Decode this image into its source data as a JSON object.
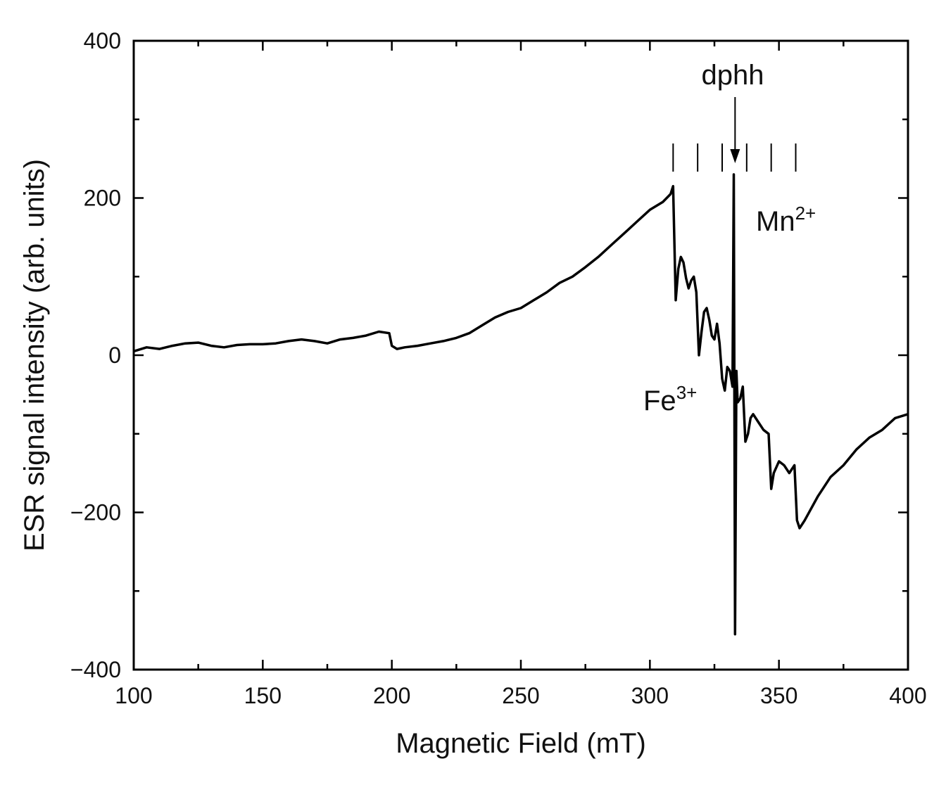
{
  "chart_data": {
    "type": "line",
    "title": "",
    "xlabel": "Magnetic Field (mT)",
    "ylabel": "ESR signal intensity (arb. units)",
    "xlim": [
      100,
      400
    ],
    "ylim": [
      -400,
      400
    ],
    "x_ticks": [
      100,
      150,
      200,
      250,
      300,
      350,
      400
    ],
    "y_ticks": [
      -400,
      -200,
      0,
      200,
      400
    ],
    "x_tick_labels": [
      "100",
      "150",
      "200",
      "250",
      "300",
      "350",
      "400"
    ],
    "y_tick_labels": [
      "−400",
      "−200",
      "0",
      "200",
      "400"
    ],
    "grid": false,
    "series": [
      {
        "name": "ESR spectrum",
        "color": "#000000",
        "x": [
          100,
          105,
          110,
          115,
          120,
          125,
          130,
          135,
          140,
          145,
          150,
          155,
          160,
          165,
          170,
          175,
          180,
          185,
          190,
          195,
          199,
          200,
          202,
          205,
          210,
          215,
          220,
          225,
          230,
          235,
          240,
          245,
          250,
          255,
          260,
          265,
          270,
          275,
          280,
          285,
          290,
          295,
          300,
          305,
          308,
          309,
          310,
          311,
          312,
          313,
          314,
          315,
          316,
          317,
          318,
          319,
          320,
          321,
          322,
          323,
          324,
          325,
          326,
          327,
          328,
          329,
          330,
          331,
          332,
          332.5,
          333,
          333.5,
          334,
          335,
          336,
          337,
          338,
          339,
          340,
          342,
          344,
          346,
          347,
          348,
          350,
          352,
          354,
          355,
          356,
          357,
          358,
          360,
          365,
          370,
          375,
          380,
          385,
          390,
          395,
          400
        ],
        "y": [
          5,
          10,
          8,
          12,
          15,
          16,
          12,
          10,
          13,
          14,
          14,
          15,
          18,
          20,
          18,
          15,
          20,
          22,
          25,
          30,
          28,
          12,
          8,
          10,
          12,
          15,
          18,
          22,
          28,
          38,
          48,
          55,
          60,
          70,
          80,
          92,
          100,
          112,
          125,
          140,
          155,
          170,
          185,
          195,
          205,
          215,
          70,
          110,
          125,
          118,
          98,
          85,
          95,
          100,
          80,
          0,
          30,
          55,
          60,
          45,
          25,
          20,
          40,
          15,
          -30,
          -45,
          -15,
          -20,
          -40,
          230,
          -355,
          -20,
          -60,
          -55,
          -40,
          -110,
          -100,
          -80,
          -75,
          -85,
          -95,
          -100,
          -170,
          -150,
          -135,
          -140,
          -150,
          -145,
          -140,
          -210,
          -220,
          -210,
          -180,
          -155,
          -140,
          -120,
          -105,
          -95,
          -80,
          -75
        ]
      }
    ],
    "annotations": {
      "dphh": "dphh",
      "mn_base": "Mn",
      "mn_sup": "2+",
      "fe_base": "Fe",
      "fe_sup": "3+",
      "arrow_x": 333,
      "mn_hyperfine_lines_x": [
        309,
        318.5,
        328,
        337.5,
        347,
        356.5
      ]
    }
  }
}
